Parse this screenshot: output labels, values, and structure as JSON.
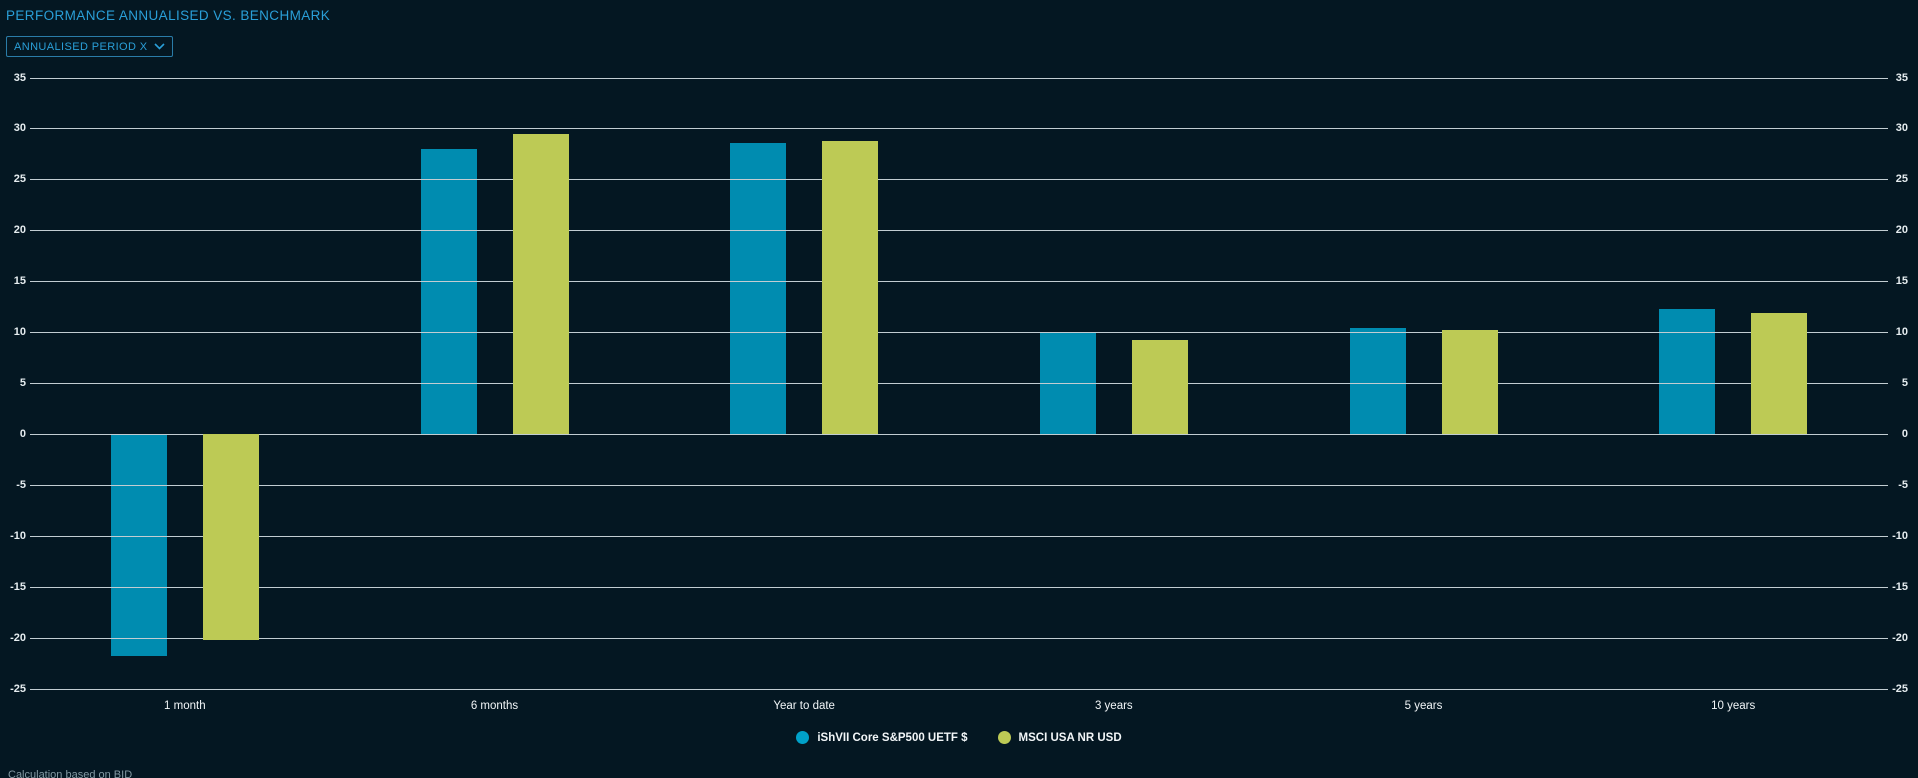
{
  "header": {
    "title": "PERFORMANCE ANNUALISED VS. BENCHMARK"
  },
  "controls": {
    "period_dropdown_label": "ANNUALISED PERIOD X",
    "period_dropdown_icon": "chevron-down-icon"
  },
  "footer": {
    "note": "Calculation based on BID"
  },
  "colors": {
    "background": "#041722",
    "title_blue": "#2a9fd8",
    "gridline": "#c2cdd2",
    "series_blue": "#00a1c9",
    "series_green": "#bdca55"
  },
  "chart_data": {
    "type": "bar",
    "title": "PERFORMANCE ANNUALISED VS. BENCHMARK",
    "categories": [
      "1 month",
      "6 months",
      "Year to date",
      "3 years",
      "5 years",
      "10 years"
    ],
    "series": [
      {
        "name": "iShVII Core S&P500 UETF $",
        "color": "#00a1c9",
        "values": [
          -21.8,
          28.0,
          28.6,
          10.0,
          10.4,
          12.3
        ]
      },
      {
        "name": "MSCI USA NR USD",
        "color": "#bdca55",
        "values": [
          -20.2,
          29.5,
          28.8,
          9.2,
          10.2,
          11.9
        ]
      }
    ],
    "xlabel": "",
    "ylabel": "",
    "ylim": [
      -25,
      35
    ],
    "ytick_step": 5,
    "yticks": [
      35,
      30,
      25,
      20,
      15,
      10,
      5,
      0,
      -5,
      -10,
      -15,
      -20,
      -25
    ],
    "grid": true,
    "dual_axis_labels": true,
    "legend_position": "bottom-center"
  }
}
